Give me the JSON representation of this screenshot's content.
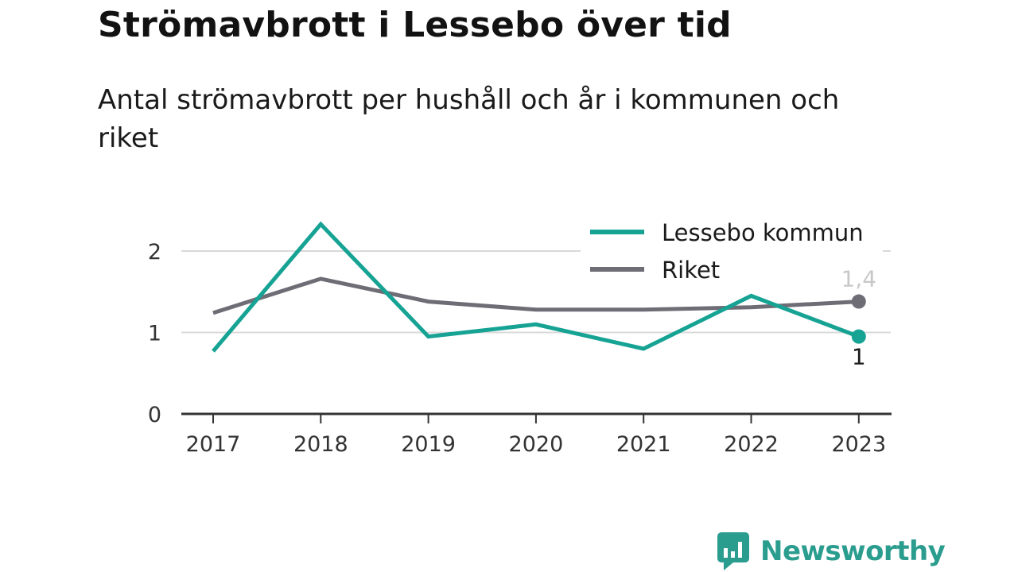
{
  "title": "Strömavbrott i Lessebo över tid",
  "subtitle": "Antal strömavbrott per hushåll och år i kommunen och riket",
  "brand": {
    "name": "Newsworthy",
    "color": "#2a9d8f"
  },
  "colors": {
    "lessebo": "#16a394",
    "riket": "#6e6d75",
    "grid": "#d9d9d9",
    "axis": "#333333"
  },
  "chart_data": {
    "type": "line",
    "title": "Strömavbrott i Lessebo över tid",
    "subtitle": "Antal strömavbrott per hushåll och år i kommunen och riket",
    "xlabel": "",
    "ylabel": "",
    "categories": [
      "2017",
      "2018",
      "2019",
      "2020",
      "2021",
      "2022",
      "2023"
    ],
    "ylim": [
      0,
      2.5
    ],
    "yticks": [
      0,
      1,
      2
    ],
    "ytick_labels": [
      "0",
      "1",
      "2"
    ],
    "grid": true,
    "legend_position": "top-right",
    "series": [
      {
        "name": "Lessebo kommun",
        "values": [
          0.77,
          2.33,
          0.95,
          1.1,
          0.8,
          1.45,
          0.95
        ],
        "end_label": "1"
      },
      {
        "name": "Riket",
        "values": [
          1.24,
          1.66,
          1.38,
          1.28,
          1.28,
          1.31,
          1.38
        ],
        "end_label": "1,4"
      }
    ]
  }
}
